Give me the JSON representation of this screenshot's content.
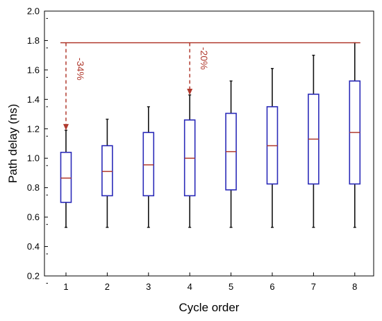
{
  "chart_data": {
    "type": "box",
    "xlabel": "Cycle order",
    "ylabel": "Path delay (ns)",
    "categories": [
      "1",
      "2",
      "3",
      "4",
      "5",
      "6",
      "7",
      "8"
    ],
    "ylim": [
      0.2,
      2.0
    ],
    "yticks": [
      "0.2",
      "0.4",
      "0.6",
      "0.8",
      "1.0",
      "1.2",
      "1.4",
      "1.6",
      "1.8",
      "2.0"
    ],
    "boxes": [
      {
        "whisker_low": 0.53,
        "q1": 0.7,
        "median": 0.865,
        "q3": 1.04,
        "whisker_high": 1.19
      },
      {
        "whisker_low": 0.53,
        "q1": 0.745,
        "median": 0.91,
        "q3": 1.085,
        "whisker_high": 1.265
      },
      {
        "whisker_low": 0.53,
        "q1": 0.745,
        "median": 0.955,
        "q3": 1.175,
        "whisker_high": 1.35
      },
      {
        "whisker_low": 0.53,
        "q1": 0.745,
        "median": 1.0,
        "q3": 1.26,
        "whisker_high": 1.43
      },
      {
        "whisker_low": 0.53,
        "q1": 0.785,
        "median": 1.045,
        "q3": 1.305,
        "whisker_high": 1.525
      },
      {
        "whisker_low": 0.53,
        "q1": 0.825,
        "median": 1.085,
        "q3": 1.35,
        "whisker_high": 1.61
      },
      {
        "whisker_low": 0.53,
        "q1": 0.825,
        "median": 1.13,
        "q3": 1.435,
        "whisker_high": 1.7
      },
      {
        "whisker_low": 0.53,
        "q1": 0.825,
        "median": 1.175,
        "q3": 1.525,
        "whisker_high": 1.785
      }
    ],
    "reference_line": {
      "y": 1.785,
      "x_from": 1,
      "x_to": 8
    },
    "annotations": [
      {
        "text": "-34%",
        "x": 1,
        "y_from": 1.785,
        "y_to": 1.19
      },
      {
        "text": "-20%",
        "x": 4,
        "y_from": 1.785,
        "y_to": 1.43
      }
    ],
    "colors": {
      "box": "#2a2ab8",
      "whisker": "#111111",
      "median": "#b03a2e",
      "reference": "#b03a2e",
      "annotation": "#b03a2e"
    },
    "grid": false,
    "legend": "none"
  }
}
